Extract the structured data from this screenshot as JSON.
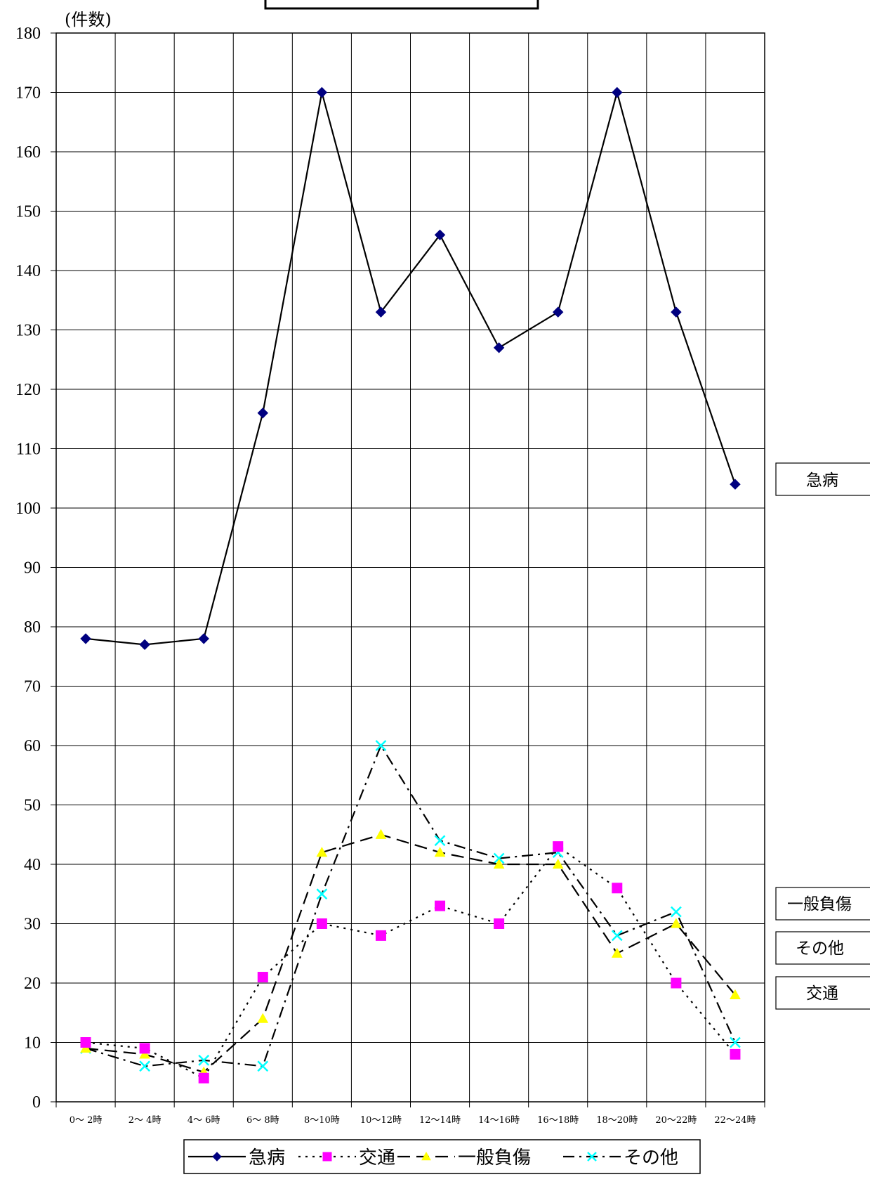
{
  "chart_data": {
    "type": "line",
    "title": "",
    "ylabel": "(件数)",
    "xlabel": "",
    "ylim": [
      0,
      180
    ],
    "yticks": [
      0,
      10,
      20,
      30,
      40,
      50,
      60,
      70,
      80,
      90,
      100,
      110,
      120,
      130,
      140,
      150,
      160,
      170,
      180
    ],
    "grid": true,
    "legend_position": "bottom",
    "categories": [
      "0～ 2時",
      "2～ 4時",
      "4～ 6時",
      "6～ 8時",
      "8～10時",
      "10～12時",
      "12～14時",
      "14～16時",
      "16～18時",
      "18～20時",
      "20～22時",
      "22～24時"
    ],
    "series": [
      {
        "name": "急病",
        "color": "#000080",
        "line_color": "#000000",
        "marker": "diamond",
        "dash": "solid",
        "values": [
          78,
          77,
          78,
          116,
          170,
          133,
          146,
          127,
          133,
          170,
          133,
          104
        ]
      },
      {
        "name": "交通",
        "color": "#ff00ff",
        "line_color": "#000000",
        "marker": "square",
        "dash": "dotted",
        "values": [
          10,
          9,
          4,
          21,
          30,
          28,
          33,
          30,
          43,
          36,
          20,
          8
        ]
      },
      {
        "name": "一般負傷",
        "color": "#ffff00",
        "line_color": "#000000",
        "marker": "triangle",
        "dash": "dashed",
        "values": [
          9,
          8,
          5,
          14,
          42,
          45,
          42,
          40,
          40,
          25,
          30,
          18
        ]
      },
      {
        "name": "その他",
        "color": "#00ffff",
        "line_color": "#000000",
        "marker": "x",
        "dash": "dashdot",
        "values": [
          9,
          6,
          7,
          6,
          35,
          60,
          44,
          41,
          42,
          28,
          32,
          10
        ]
      }
    ],
    "side_labels": [
      "急病",
      "一般負傷",
      "その他",
      "交通"
    ]
  }
}
